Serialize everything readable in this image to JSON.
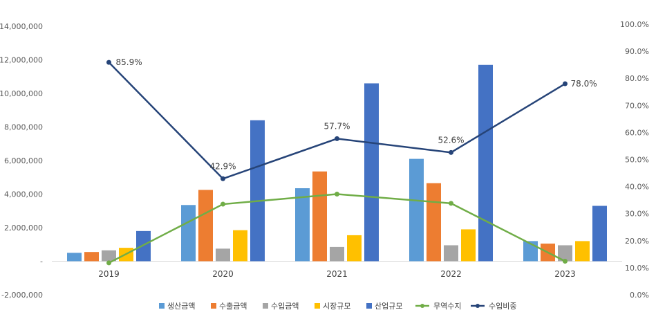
{
  "chart_data": {
    "type": "bar",
    "categories": [
      "2019",
      "2020",
      "2021",
      "2022",
      "2023"
    ],
    "bar_series": [
      {
        "name": "생산금액",
        "color": "#5B9BD5",
        "values": [
          500000,
          3350000,
          4350000,
          6100000,
          1200000
        ]
      },
      {
        "name": "수출금액",
        "color": "#ED7D31",
        "values": [
          550000,
          4250000,
          5350000,
          4650000,
          1050000
        ]
      },
      {
        "name": "수입금액",
        "color": "#A5A5A5",
        "values": [
          650000,
          750000,
          850000,
          950000,
          950000
        ]
      },
      {
        "name": "시장규모",
        "color": "#FFC000",
        "values": [
          800000,
          1850000,
          1550000,
          1900000,
          1200000
        ]
      },
      {
        "name": "산업규모",
        "color": "#4472C4",
        "values": [
          1800000,
          8400000,
          10600000,
          11700000,
          3300000
        ]
      }
    ],
    "line_series": [
      {
        "name": "무역수지",
        "color": "#70AD47",
        "axis": "left",
        "values": [
          -100000,
          3400000,
          4000000,
          3450000,
          0
        ]
      },
      {
        "name": "수입비중",
        "color": "#264478",
        "axis": "right",
        "values": [
          85.9,
          42.9,
          57.7,
          52.6,
          78.0
        ],
        "labels": [
          "85.9%",
          "42.9%",
          "57.7%",
          "52.6%",
          "78.0%"
        ]
      }
    ],
    "y_left": {
      "min": -2000000,
      "max": 14000000,
      "step": 2000000,
      "ticks": [
        "-2,000,000",
        "-",
        "2,000,000",
        "4,000,000",
        "6,000,000",
        "8,000,000",
        "10,000,000",
        "12,000,000",
        "14,000,000"
      ]
    },
    "y_right": {
      "min": 0,
      "max": 100,
      "step": 10,
      "ticks": [
        "0.0%",
        "10.0%",
        "20.0%",
        "30.0%",
        "40.0%",
        "50.0%",
        "60.0%",
        "70.0%",
        "80.0%",
        "90.0%",
        "100.0%"
      ]
    },
    "grid": false,
    "legend_position": "bottom"
  }
}
